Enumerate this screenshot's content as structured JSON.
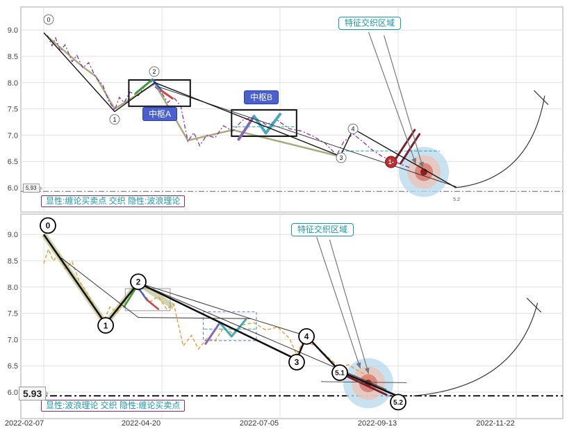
{
  "axis": {
    "x_labels": [
      "2022-02-07",
      "2022-04-20",
      "2022-07-05",
      "2022-09-13",
      "2022-11-22"
    ],
    "x_grid": [
      0,
      1,
      2,
      3,
      4
    ],
    "y_ticks": [
      9.0,
      8.5,
      8.0,
      7.5,
      7.0,
      6.5,
      6.0
    ]
  },
  "colors": {
    "teal_accent": "#1899A6",
    "purple_accent": "#7B2D8E",
    "pivot_blue": "#4A5FD0",
    "price_top": "#8B2FA0",
    "price_bottom": "#E2A33C",
    "dark_red": "#7A1F2B"
  },
  "chart_data": [
    {
      "panel": "top",
      "type": "line",
      "x_unit": "grid index (0=2022-02-07, 1=2022-04-20, 2=2022-07-05, 3=2022-09-13, 4=2022-11-22)",
      "ylim": [
        5.7,
        9.35
      ],
      "legend": "显性:缠论买卖点 交织 隐性:波浪理论",
      "cross_label": "特征交织区域",
      "ref_level": 5.93,
      "ref_label": "5.93",
      "pivots": [
        {
          "text": "中枢A"
        },
        {
          "text": "中枢B"
        }
      ],
      "main_wave": [
        [
          0.0,
          8.95
        ],
        [
          0.6,
          7.45
        ],
        [
          0.94,
          8.0
        ],
        [
          2.51,
          6.6
        ],
        [
          2.62,
          7.12
        ],
        [
          3.49,
          6.0
        ]
      ],
      "band": [
        [
          0.03,
          8.88
        ],
        [
          0.33,
          8.3
        ],
        [
          0.44,
          8.12
        ],
        [
          0.6,
          7.5
        ],
        [
          0.94,
          7.98
        ],
        [
          1.22,
          6.9
        ],
        [
          1.6,
          7.1
        ],
        [
          2.5,
          6.6
        ]
      ],
      "price_series": [
        [
          0.03,
          8.9
        ],
        [
          0.07,
          8.7
        ],
        [
          0.1,
          8.85
        ],
        [
          0.14,
          8.6
        ],
        [
          0.18,
          8.72
        ],
        [
          0.24,
          8.4
        ],
        [
          0.28,
          8.52
        ],
        [
          0.33,
          8.28
        ],
        [
          0.38,
          8.38
        ],
        [
          0.44,
          8.1
        ],
        [
          0.5,
          7.95
        ],
        [
          0.55,
          7.65
        ],
        [
          0.6,
          7.48
        ],
        [
          0.64,
          7.72
        ],
        [
          0.68,
          7.62
        ],
        [
          0.73,
          7.82
        ],
        [
          0.8,
          7.75
        ],
        [
          0.86,
          7.95
        ],
        [
          0.9,
          8.05
        ],
        [
          0.94,
          7.92
        ],
        [
          1.0,
          7.8
        ],
        [
          1.05,
          7.62
        ],
        [
          1.1,
          7.72
        ],
        [
          1.16,
          7.55
        ],
        [
          1.22,
          6.88
        ],
        [
          1.27,
          7.05
        ],
        [
          1.32,
          6.8
        ],
        [
          1.38,
          7.0
        ],
        [
          1.45,
          6.95
        ],
        [
          1.52,
          7.18
        ],
        [
          1.6,
          7.08
        ],
        [
          1.68,
          7.28
        ],
        [
          1.78,
          7.35
        ],
        [
          1.88,
          7.2
        ],
        [
          1.98,
          7.28
        ],
        [
          2.08,
          7.12
        ],
        [
          2.18,
          7.08
        ],
        [
          2.28,
          6.98
        ],
        [
          2.38,
          6.85
        ],
        [
          2.48,
          6.62
        ],
        [
          2.54,
          6.88
        ],
        [
          2.62,
          7.02
        ],
        [
          2.7,
          6.88
        ],
        [
          2.78,
          6.72
        ],
        [
          2.86,
          6.6
        ],
        [
          2.94,
          6.52
        ],
        [
          3.02,
          6.45
        ],
        [
          3.1,
          6.38
        ]
      ],
      "boxes": [
        {
          "x1": 0.72,
          "y1": 8.05,
          "x2": 1.24,
          "y2": 7.55,
          "stroke": "#111111",
          "width": 2
        },
        {
          "x1": 1.59,
          "y1": 7.48,
          "x2": 2.14,
          "y2": 6.98,
          "stroke": "#111111",
          "width": 2
        }
      ],
      "segments": [
        {
          "pts": [
            [
              0.78,
              7.8
            ],
            [
              0.92,
              8.06
            ]
          ],
          "color": "#3A9A3A",
          "width": 3
        },
        {
          "pts": [
            [
              0.92,
              8.06
            ],
            [
              1.0,
              7.84
            ]
          ],
          "color": "#4466CC",
          "width": 3
        },
        {
          "pts": [
            [
              1.0,
              7.84
            ],
            [
              1.09,
              7.7
            ]
          ],
          "color": "#CC4444",
          "width": 3
        },
        {
          "pts": [
            [
              1.65,
              6.92
            ],
            [
              1.78,
              7.36
            ]
          ],
          "color": "#8866BB",
          "width": 4
        },
        {
          "pts": [
            [
              1.78,
              7.36
            ],
            [
              1.88,
              7.04
            ]
          ],
          "color": "#44AABB",
          "width": 4
        },
        {
          "pts": [
            [
              1.88,
              7.04
            ],
            [
              2.0,
              7.4
            ]
          ],
          "color": "#44AABB",
          "width": 4
        },
        {
          "pts": [
            [
              1.6,
              7.16
            ],
            [
              2.13,
              7.16
            ]
          ],
          "color": "#2AA0A8",
          "width": 1,
          "dash": "4 3"
        },
        {
          "pts": [
            [
              2.52,
              6.7
            ],
            [
              3.35,
              6.7
            ]
          ],
          "color": "#2AA0A8",
          "width": 1,
          "dash": "4 3"
        },
        {
          "pts": [
            [
              2.97,
              6.52
            ],
            [
              3.14,
              7.1
            ]
          ],
          "color": "#7A1F2B",
          "width": 3
        },
        {
          "pts": [
            [
              3.02,
              6.46
            ],
            [
              3.18,
              7.02
            ]
          ],
          "color": "#7A1F2B",
          "width": 3
        },
        {
          "pts": [
            [
              0.97,
              7.92
            ],
            [
              3.49,
              6.02
            ]
          ],
          "color": "#333333",
          "width": 1
        }
      ],
      "markers": [
        {
          "label": "0",
          "x": 0.041,
          "y": 9.2,
          "circle": true
        },
        {
          "label": "1",
          "x": 0.6,
          "y": 7.3,
          "circle": true
        },
        {
          "label": "2",
          "x": 0.935,
          "y": 8.21,
          "circle": true
        },
        {
          "label": "3",
          "x": 2.518,
          "y": 6.57,
          "circle": true
        },
        {
          "label": "4",
          "x": 2.618,
          "y": 7.12,
          "circle": true
        },
        {
          "label": "5.2",
          "x": 3.494,
          "y": 5.78,
          "circle": false
        }
      ],
      "badge": {
        "label": "1-",
        "x": 2.94,
        "y": 6.49
      },
      "target": {
        "x": 3.218,
        "y": 6.3
      },
      "arrows": [
        {
          "from": [
            2.75,
            8.96
          ],
          "to": [
            3.15,
            6.45
          ]
        },
        {
          "from": [
            2.88,
            8.9
          ],
          "to": [
            3.21,
            6.38
          ]
        }
      ],
      "whip": {
        "p0": [
          3.48,
          6.0
        ],
        "c": [
          4.12,
          6.15
        ],
        "p1": [
          4.24,
          7.75
        ],
        "tick": [
          [
            4.15,
            7.85
          ],
          [
            4.27,
            7.58
          ]
        ]
      }
    },
    {
      "panel": "bottom",
      "type": "line",
      "x_unit": "grid index (0=2022-02-07, 1=2022-04-20, 2=2022-07-05, 3=2022-09-13, 4=2022-11-22)",
      "ylim": [
        5.7,
        9.35
      ],
      "legend": "显性:波浪理论 交织 隐性:缠论买卖点",
      "cross_label": "特征交织区域",
      "ref_level": 5.93,
      "ref_label": "5.93",
      "pivots": [],
      "main_wave": [
        [
          0.0,
          9.0
        ],
        [
          0.524,
          7.3
        ],
        [
          0.8,
          8.08
        ],
        [
          2.141,
          6.62
        ],
        [
          2.224,
          7.07
        ],
        [
          2.506,
          6.4
        ],
        [
          3.0,
          5.92
        ]
      ],
      "band": [
        [
          0.0,
          9.0
        ],
        [
          0.524,
          7.3
        ],
        [
          0.8,
          8.08
        ],
        [
          1.1,
          7.62
        ]
      ],
      "price_series": [
        [
          0.0,
          8.45
        ],
        [
          0.04,
          8.72
        ],
        [
          0.08,
          8.5
        ],
        [
          0.13,
          8.62
        ],
        [
          0.18,
          8.35
        ],
        [
          0.24,
          8.48
        ],
        [
          0.3,
          8.12
        ],
        [
          0.37,
          7.88
        ],
        [
          0.44,
          7.58
        ],
        [
          0.5,
          7.32
        ],
        [
          0.56,
          7.62
        ],
        [
          0.62,
          7.52
        ],
        [
          0.7,
          7.78
        ],
        [
          0.78,
          7.98
        ],
        [
          0.84,
          7.88
        ],
        [
          0.9,
          7.72
        ],
        [
          0.97,
          7.82
        ],
        [
          1.04,
          7.58
        ],
        [
          1.1,
          7.68
        ],
        [
          1.18,
          6.88
        ],
        [
          1.25,
          7.08
        ],
        [
          1.31,
          6.82
        ],
        [
          1.38,
          7.02
        ],
        [
          1.45,
          6.98
        ],
        [
          1.52,
          7.22
        ],
        [
          1.6,
          7.12
        ],
        [
          1.68,
          7.28
        ],
        [
          1.78,
          7.32
        ],
        [
          1.88,
          7.18
        ],
        [
          1.98,
          7.24
        ],
        [
          2.08,
          7.02
        ],
        [
          2.14,
          6.72
        ],
        [
          2.2,
          6.98
        ],
        [
          2.3,
          6.88
        ],
        [
          2.4,
          6.68
        ],
        [
          2.5,
          6.48
        ],
        [
          2.58,
          6.52
        ],
        [
          2.68,
          6.38
        ],
        [
          2.78,
          6.28
        ]
      ],
      "boxes": [
        {
          "x1": 0.69,
          "y1": 7.97,
          "x2": 1.07,
          "y2": 7.55,
          "stroke": "#999999",
          "width": 1
        },
        {
          "x1": 1.35,
          "y1": 7.53,
          "x2": 1.8,
          "y2": 6.98,
          "stroke": "#5577CC",
          "width": 1,
          "dash": "4 3"
        }
      ],
      "segments": [
        {
          "pts": [
            [
              0.68,
              7.62
            ],
            [
              0.79,
              8.02
            ]
          ],
          "color": "#3A9A3A",
          "width": 2.5
        },
        {
          "pts": [
            [
              0.79,
              8.02
            ],
            [
              0.87,
              7.76
            ]
          ],
          "color": "#4466CC",
          "width": 2.5
        },
        {
          "pts": [
            [
              0.87,
              7.76
            ],
            [
              0.97,
              7.58
            ]
          ],
          "color": "#CC4444",
          "width": 2.5
        },
        {
          "pts": [
            [
              1.37,
              6.92
            ],
            [
              1.49,
              7.32
            ]
          ],
          "color": "#8866BB",
          "width": 3
        },
        {
          "pts": [
            [
              1.49,
              7.32
            ],
            [
              1.59,
              7.06
            ]
          ],
          "color": "#44AABB",
          "width": 3
        },
        {
          "pts": [
            [
              1.59,
              7.06
            ],
            [
              1.71,
              7.38
            ]
          ],
          "color": "#44AABB",
          "width": 3
        },
        {
          "pts": [
            [
              1.36,
              7.2
            ],
            [
              1.79,
              7.2
            ]
          ],
          "color": "#2AA0A8",
          "width": 1,
          "dash": "4 3"
        },
        {
          "pts": [
            [
              0.15,
              8.55
            ],
            [
              0.8,
              7.42
            ]
          ],
          "color": "#333333",
          "width": 1
        },
        {
          "pts": [
            [
              0.8,
              7.42
            ],
            [
              1.75,
              7.4
            ]
          ],
          "color": "#333333",
          "width": 1
        },
        {
          "pts": [
            [
              0.8,
              8.08
            ],
            [
              1.75,
              7.4
            ]
          ],
          "color": "#333333",
          "width": 1
        },
        {
          "pts": [
            [
              1.75,
              7.4
            ],
            [
              2.224,
              7.07
            ]
          ],
          "color": "#333333",
          "width": 1
        },
        {
          "pts": [
            [
              0.8,
              8.08
            ],
            [
              2.9,
              6.05
            ]
          ],
          "color": "#333333",
          "width": 1
        },
        {
          "pts": [
            [
              2.55,
              6.32
            ],
            [
              2.9,
              5.95
            ]
          ],
          "color": "#7A1F2B",
          "width": 3
        },
        {
          "pts": [
            [
              2.35,
              6.2
            ],
            [
              3.07,
              6.18
            ]
          ],
          "color": "#555555",
          "width": 1
        }
      ],
      "markers": [
        {
          "label": "0",
          "x": 0.035,
          "y": 9.17,
          "circle": true
        },
        {
          "label": "1",
          "x": 0.524,
          "y": 7.27,
          "circle": true
        },
        {
          "label": "2",
          "x": 0.8,
          "y": 8.1,
          "circle": true
        },
        {
          "label": "3",
          "x": 2.141,
          "y": 6.57,
          "circle": true
        },
        {
          "label": "4",
          "x": 2.224,
          "y": 7.06,
          "circle": true
        },
        {
          "label": "5.1",
          "x": 2.506,
          "y": 6.37,
          "circle": true
        },
        {
          "label": "5.2",
          "x": 3.0,
          "y": 5.81,
          "circle": true
        }
      ],
      "target": {
        "x": 2.747,
        "y": 6.17
      },
      "arrows": [
        {
          "from": [
            2.31,
            8.95
          ],
          "to": [
            2.68,
            6.45
          ]
        },
        {
          "from": [
            2.42,
            8.9
          ],
          "to": [
            2.75,
            6.35
          ]
        }
      ],
      "whip": {
        "p0": [
          3.13,
          5.93
        ],
        "c": [
          4.0,
          6.1
        ],
        "p1": [
          4.18,
          7.7
        ],
        "tick": [
          [
            4.09,
            7.79
          ],
          [
            4.21,
            7.52
          ]
        ]
      }
    }
  ]
}
